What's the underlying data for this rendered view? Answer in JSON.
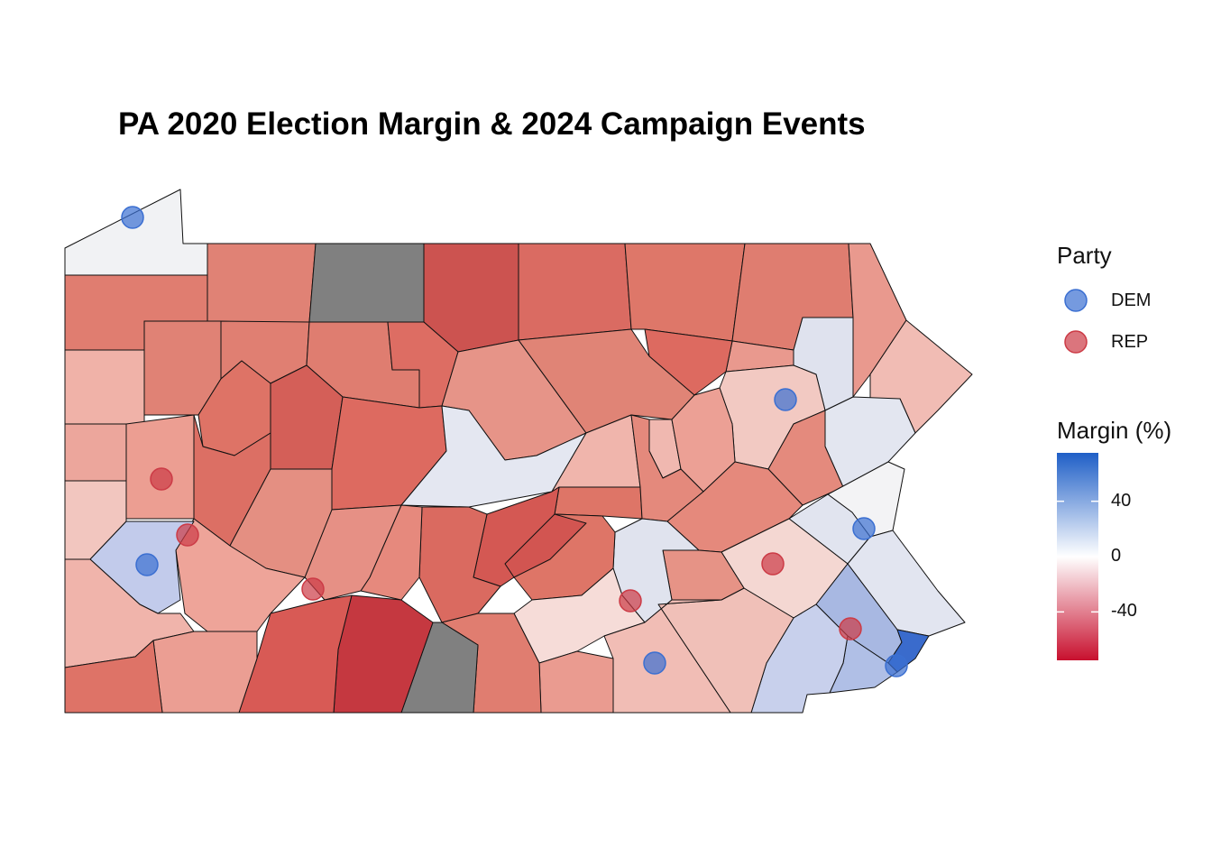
{
  "title": "PA 2020 Election Margin & 2024 Campaign Events",
  "legend_party": {
    "title": "Party",
    "items": [
      {
        "label": "DEM",
        "color": "#3b6fd1"
      },
      {
        "label": "REP",
        "color": "#cc3b46"
      }
    ]
  },
  "legend_margin": {
    "title": "Margin (%)",
    "ticks": [
      "40",
      "0",
      "-40"
    ],
    "tick_values": [
      40,
      0,
      -40
    ],
    "range": [
      -75,
      75
    ],
    "colors": {
      "high": "#1f5fc7",
      "mid": "#ffffff",
      "low": "#c8102e"
    }
  },
  "no_data_color": "#808080",
  "events": [
    {
      "party": "DEM",
      "location": "Erie"
    },
    {
      "party": "REP",
      "location": "Butler"
    },
    {
      "party": "REP",
      "location": "Allegheny (north)"
    },
    {
      "party": "DEM",
      "location": "Pittsburgh"
    },
    {
      "party": "REP",
      "location": "Westmoreland"
    },
    {
      "party": "DEM",
      "location": "Luzerne"
    },
    {
      "party": "DEM",
      "location": "Lehigh"
    },
    {
      "party": "REP",
      "location": "Berks"
    },
    {
      "party": "REP",
      "location": "Cumberland"
    },
    {
      "party": "DEM",
      "location": "York"
    },
    {
      "party": "REP",
      "location": "Delaware"
    },
    {
      "party": "DEM",
      "location": "Philadelphia"
    }
  ]
}
